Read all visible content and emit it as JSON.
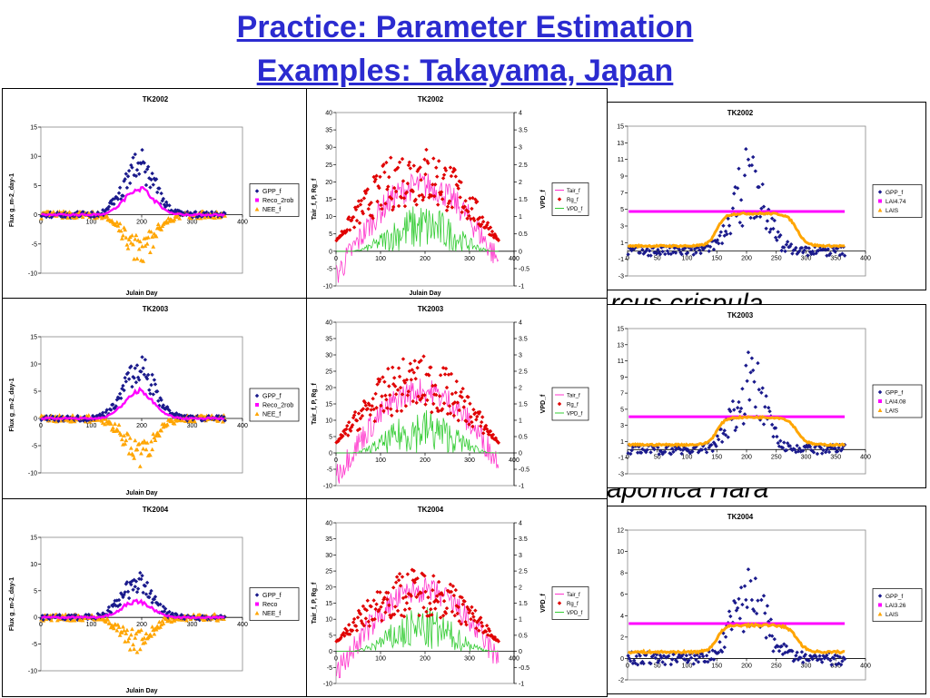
{
  "slide": {
    "title_line1": "Practice: Parameter Estimation",
    "title_line2": "Examples: Takayama, Japan",
    "background_fragments": [
      "rcus crispula",
      "aponica Hara"
    ]
  },
  "colors": {
    "gpp": "#1a1a8c",
    "reco": "#ff00ff",
    "nee": "#ffa500",
    "tair": "#ff33cc",
    "rg": "#e00000",
    "vpd": "#33cc33",
    "lai": "#ff00ff",
    "lais": "#ffa500",
    "title": "#2b2bd0"
  },
  "chart_data": [
    {
      "type": "scatter",
      "title": "TK2002",
      "xlabel": "Julain Day",
      "ylabel": "Flux g_m-2_day-1",
      "xlim": [
        0,
        400
      ],
      "ylim": [
        -10,
        15
      ],
      "xticks": [
        0,
        100,
        200,
        300,
        400
      ],
      "yticks": [
        -10,
        -5,
        0,
        5,
        10,
        15
      ],
      "series": [
        {
          "name": "GPP_f",
          "marker": "diamond",
          "peak_day": 195,
          "peak": 9.5
        },
        {
          "name": "Reco_2rob",
          "marker": "square",
          "peak_day": 190,
          "peak": 4.5
        },
        {
          "name": "NEE_f",
          "marker": "triangle",
          "peak_day": 195,
          "peak": -7
        }
      ]
    },
    {
      "type": "scatter",
      "title": "TK2002",
      "xlabel": "Julain Day",
      "ylabel": "Tair_f, P, Rg_f",
      "y2label": "VPD_f",
      "xlim": [
        0,
        400
      ],
      "ylim": [
        -10,
        40
      ],
      "y2lim": [
        -1,
        4
      ],
      "xticks": [
        0,
        100,
        200,
        300,
        400
      ],
      "yticks": [
        -10,
        -5,
        0,
        5,
        10,
        15,
        20,
        25,
        30,
        35,
        40
      ],
      "y2ticks": [
        "-1",
        "-0.5",
        "0",
        "0.5",
        "1",
        "1.5",
        "2",
        "2.5",
        "3",
        "3.5",
        "4"
      ],
      "series": [
        {
          "name": "Tair_f",
          "marker": "line"
        },
        {
          "name": "Rg_f",
          "marker": "diamond"
        },
        {
          "name": "VPD_f",
          "marker": "line"
        }
      ]
    },
    {
      "type": "scatter",
      "title": "TK2002",
      "xlim": [
        0,
        400
      ],
      "ylim": [
        -3,
        15
      ],
      "xticks": [
        0,
        50,
        100,
        150,
        200,
        250,
        300,
        350,
        400
      ],
      "yticks": [
        -3,
        -1,
        1,
        3,
        5,
        7,
        9,
        11,
        13,
        15
      ],
      "series": [
        {
          "name": "GPP_f",
          "marker": "diamond"
        },
        {
          "name": "LAI4.74",
          "marker": "square",
          "value": 4.74
        },
        {
          "name": "LAIS",
          "marker": "triangle",
          "max": 4.5
        }
      ]
    },
    {
      "type": "scatter",
      "title": "TK2003",
      "xlabel": "Julain Day",
      "ylabel": "Flux g_m-2_day-1",
      "xlim": [
        0,
        400
      ],
      "ylim": [
        -10,
        15
      ],
      "xticks": [
        0,
        100,
        200,
        300,
        400
      ],
      "yticks": [
        -10,
        -5,
        0,
        5,
        10,
        15
      ],
      "series": [
        {
          "name": "GPP_f",
          "marker": "diamond",
          "peak_day": 195,
          "peak": 10
        },
        {
          "name": "Reco_2rob",
          "marker": "square",
          "peak_day": 190,
          "peak": 5
        },
        {
          "name": "NEE_f",
          "marker": "triangle",
          "peak_day": 195,
          "peak": -7
        }
      ]
    },
    {
      "type": "scatter",
      "title": "TK2003",
      "ylabel": "Tair_f, P, Rg_f",
      "y2label": "VPD_f",
      "xlim": [
        0,
        400
      ],
      "ylim": [
        -10,
        40
      ],
      "y2lim": [
        -1,
        4
      ],
      "xticks": [
        0,
        100,
        200,
        300,
        400
      ],
      "yticks": [
        -10,
        -5,
        0,
        5,
        10,
        15,
        20,
        25,
        30,
        35,
        40
      ],
      "y2ticks": [
        "-1",
        "-0.5",
        "0",
        "0.5",
        "1",
        "1.5",
        "2",
        "2.5",
        "3",
        "3.5",
        "4"
      ],
      "series": [
        {
          "name": "Tair_f",
          "marker": "line"
        },
        {
          "name": "Rg_f",
          "marker": "diamond"
        },
        {
          "name": "VPD_f",
          "marker": "line"
        }
      ]
    },
    {
      "type": "scatter",
      "title": "TK2003",
      "xlim": [
        0,
        400
      ],
      "ylim": [
        -3,
        15
      ],
      "xticks": [
        0,
        50,
        100,
        150,
        200,
        250,
        300,
        350,
        400
      ],
      "yticks": [
        -3,
        -1,
        1,
        3,
        5,
        7,
        9,
        11,
        13,
        15
      ],
      "series": [
        {
          "name": "GPP_f",
          "marker": "diamond"
        },
        {
          "name": "LAI4.08",
          "marker": "square",
          "value": 4.08
        },
        {
          "name": "LAIS",
          "marker": "triangle",
          "max": 4.0
        }
      ]
    },
    {
      "type": "scatter",
      "title": "TK2004",
      "xlabel": "Julain Day",
      "ylabel": "Flux g_m-2_day-1",
      "xlim": [
        0,
        400
      ],
      "ylim": [
        -10,
        15
      ],
      "xticks": [
        0,
        100,
        200,
        300,
        400
      ],
      "yticks": [
        -10,
        -5,
        0,
        5,
        10,
        15
      ],
      "series": [
        {
          "name": "GPP_f",
          "marker": "diamond",
          "peak_day": 190,
          "peak": 7
        },
        {
          "name": "Reco",
          "marker": "square",
          "peak_day": 190,
          "peak": 3
        },
        {
          "name": "NEE_f",
          "marker": "triangle",
          "peak_day": 190,
          "peak": -5
        }
      ]
    },
    {
      "type": "scatter",
      "title": "TK2004",
      "ylabel": "Tair_f, P, Rg_f",
      "y2label": "VPD_f",
      "xlim": [
        0,
        400
      ],
      "ylim": [
        -10,
        40
      ],
      "y2lim": [
        -1,
        4
      ],
      "xticks": [
        0,
        100,
        200,
        300,
        400
      ],
      "yticks": [
        -10,
        -5,
        0,
        5,
        10,
        15,
        20,
        25,
        30,
        35,
        40
      ],
      "y2ticks": [
        "-1",
        "-0.5",
        "0",
        "0.5",
        "1",
        "1.5",
        "2",
        "2.5",
        "3",
        "3.5",
        "4"
      ],
      "series": [
        {
          "name": "Tair_f",
          "marker": "line"
        },
        {
          "name": "Rg_f",
          "marker": "diamond"
        },
        {
          "name": "VPD_f",
          "marker": "line"
        }
      ]
    },
    {
      "type": "scatter",
      "title": "TK2004",
      "xlim": [
        0,
        400
      ],
      "ylim": [
        -2,
        12
      ],
      "xticks": [
        0,
        50,
        100,
        150,
        200,
        250,
        300,
        350,
        400
      ],
      "yticks": [
        -2,
        0,
        2,
        4,
        6,
        8,
        10,
        12
      ],
      "series": [
        {
          "name": "GPP_f",
          "marker": "diamond"
        },
        {
          "name": "LAI3.26",
          "marker": "square",
          "value": 3.26
        },
        {
          "name": "LAIS",
          "marker": "triangle",
          "max": 3.1
        }
      ]
    }
  ]
}
